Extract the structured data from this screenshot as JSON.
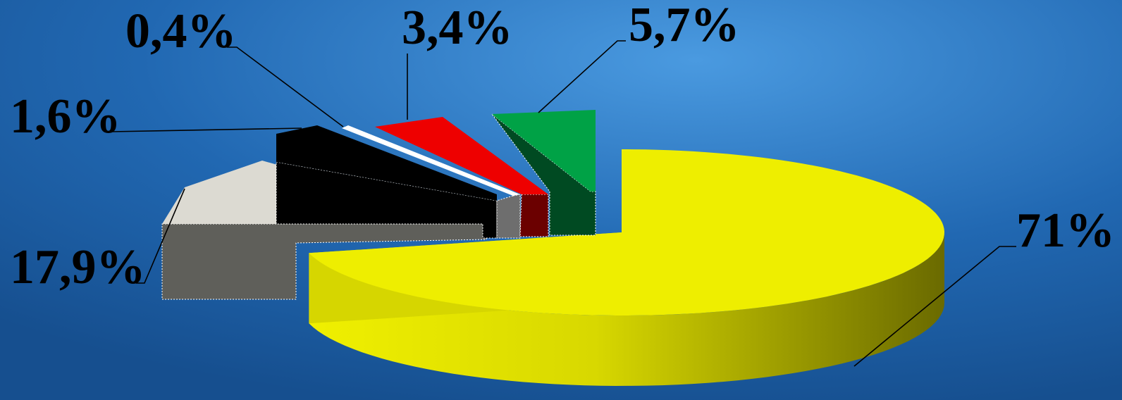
{
  "chart_data": {
    "type": "pie",
    "title": "",
    "slices": [
      {
        "label": "71%",
        "value": 71.0,
        "color": "#eeee00",
        "side_color": "#9a9a00"
      },
      {
        "label": "17,9%",
        "value": 17.9,
        "color": "#dcdad2",
        "side_color": "#5f5f5a"
      },
      {
        "label": "1,6%",
        "value": 1.6,
        "color": "#000000",
        "side_color": "#000000"
      },
      {
        "label": "0,4%",
        "value": 0.4,
        "color": "#ffffff",
        "side_color": "#6e6e6e"
      },
      {
        "label": "3,4%",
        "value": 3.4,
        "color": "#ee0000",
        "side_color": "#6b0000"
      },
      {
        "label": "5,7%",
        "value": 5.7,
        "color": "#00a246",
        "side_color": "#004a22"
      }
    ],
    "style": "3d-exploded",
    "legend": "none",
    "background_color": "#1d5fa6"
  }
}
